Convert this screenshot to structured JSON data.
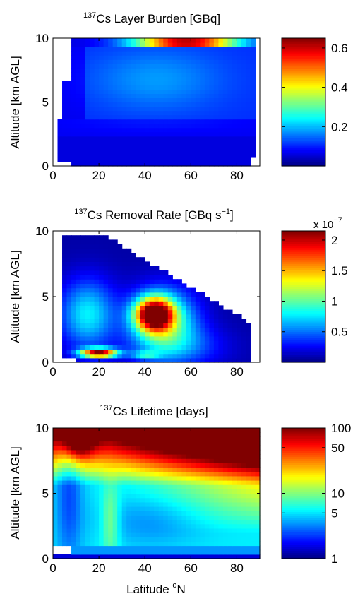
{
  "chart_data": [
    {
      "type": "heatmap",
      "title": "Cs Layer Burden [GBq]",
      "title_superscript": "137",
      "title_main": "Cs Layer Burden [GBq]",
      "ylabel": "Altitude [km AGL]",
      "xlabel": "",
      "xlim": [
        0,
        90
      ],
      "ylim": [
        0,
        10
      ],
      "xticks": [
        "0",
        "20",
        "40",
        "60",
        "80"
      ],
      "yticks": [
        "0",
        "5",
        "10"
      ],
      "colorbar": {
        "min": 0,
        "max": 0.65,
        "ticks": [
          "0.2",
          "0.4",
          "0.6"
        ],
        "tick_values": [
          0.2,
          0.4,
          0.6
        ],
        "multiplier": "",
        "scale": "linear"
      },
      "data_extent": "latitude 8-88 N, altitude 0-10 km; burden highest near 9.5 km altitude at 40-65 N (about 0.55-0.6 GBq), lowest (0.05-0.1) near surface and at low latitudes"
    },
    {
      "type": "heatmap",
      "title": "Cs Removal Rate [GBq s-1]",
      "title_superscript": "137",
      "title_main": "Cs Removal Rate [GBq s",
      "title_unit_exp": "−1",
      "title_close": "]",
      "ylabel": "Altitude [km AGL]",
      "xlabel": "",
      "xlim": [
        0,
        90
      ],
      "ylim": [
        0,
        10
      ],
      "xticks": [
        "0",
        "20",
        "40",
        "60",
        "80"
      ],
      "yticks": [
        "0",
        "5",
        "10"
      ],
      "colorbar": {
        "min": 0,
        "max": 2.15,
        "ticks": [
          "0.5",
          "1",
          "1.5",
          "2"
        ],
        "tick_values": [
          0.5,
          1,
          1.5,
          2
        ],
        "multiplier": "x 10",
        "multiplier_exp": "−7",
        "scale": "linear"
      },
      "data_extent": "maximum removal about 2e-7 GBq/s at 40-50 N, 3-4 km altitude and near surface at 15-25 N; domain boundary slopes from 10 km at 25 N to 3 km at 85 N"
    },
    {
      "type": "heatmap",
      "title": "Cs Lifetime [days]",
      "title_superscript": "137",
      "title_main": "Cs Lifetime [days]",
      "ylabel": "Altitude [km AGL]",
      "xlabel": "Latitude N",
      "xlabel_main": "Latitude ",
      "xlabel_superscript": "o",
      "xlabel_tail": "N",
      "xlim": [
        0,
        90
      ],
      "ylim": [
        0,
        10
      ],
      "xticks": [
        "0",
        "20",
        "40",
        "60",
        "80"
      ],
      "yticks": [
        "0",
        "5",
        "10"
      ],
      "colorbar": {
        "min": 1,
        "max": 100,
        "ticks": [
          "1",
          "5",
          "10",
          "50",
          "100"
        ],
        "tick_values": [
          1,
          5,
          10,
          50,
          100
        ],
        "multiplier": "",
        "scale": "log"
      },
      "data_extent": "lifetime over 100 days above 6 km at mid/high latitudes; shortest (1-3 days) in a thin near-surface layer; 5-15 days in lower troposphere"
    }
  ]
}
